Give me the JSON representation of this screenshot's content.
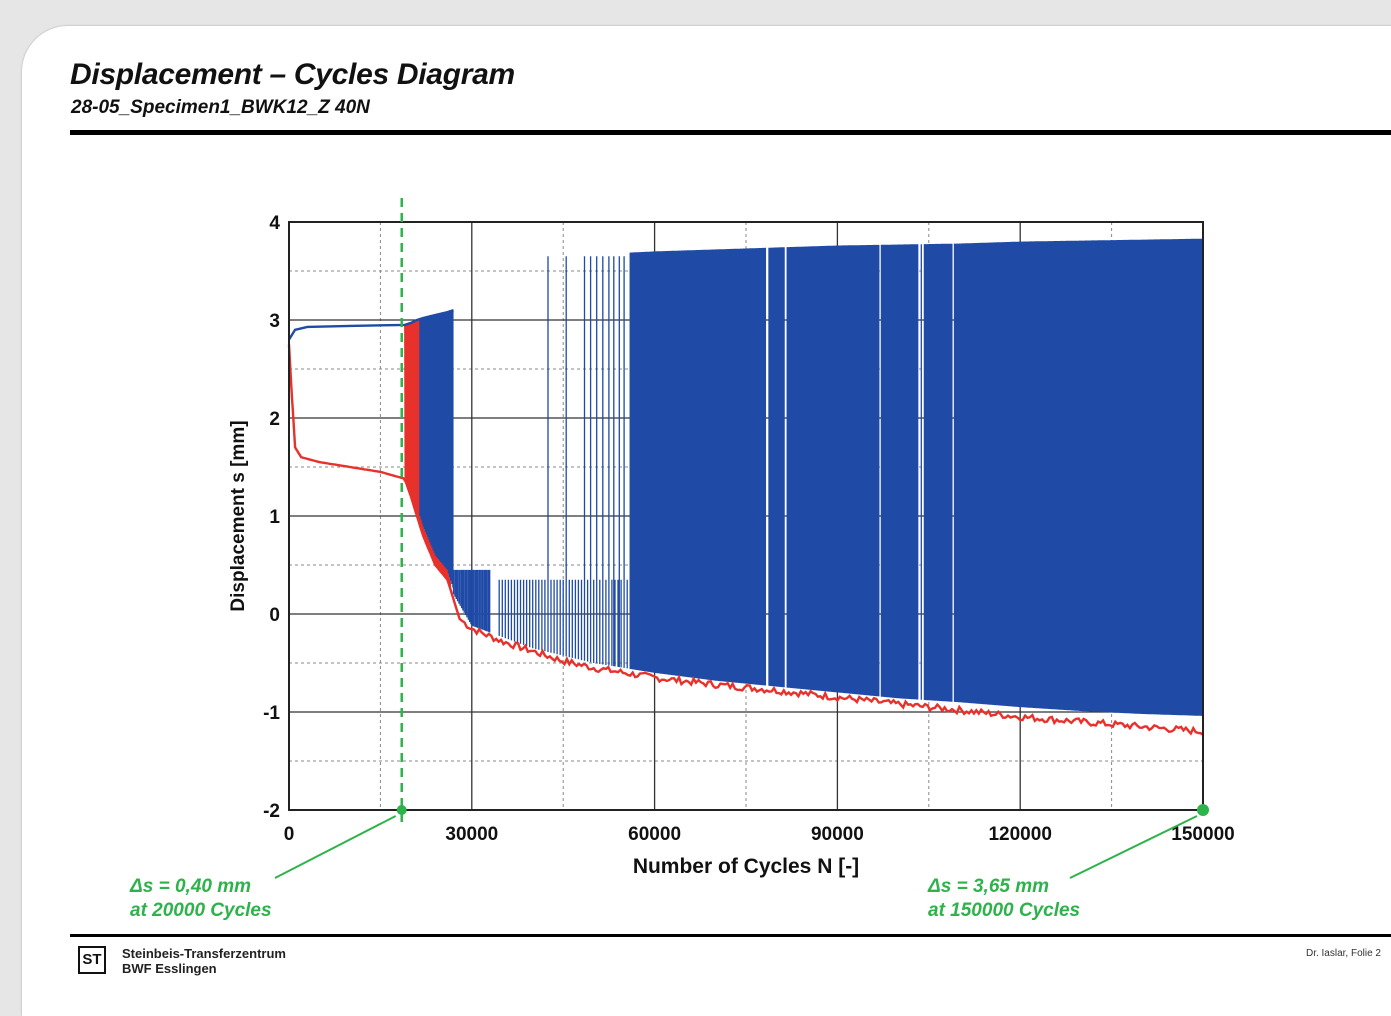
{
  "header": {
    "title": "Displacement – Cycles Diagram",
    "subtitle": "28-05_Specimen1_BWK12_Z 40N"
  },
  "footer": {
    "logo_text": "ST",
    "org_line1": "Steinbeis-Transferzentrum",
    "org_line2": "BWF Esslingen",
    "page": "Dr. Iaslar, Folie 2"
  },
  "chart_data": {
    "type": "line",
    "title": "",
    "xlabel": "Number of Cycles N [-]",
    "ylabel": "Displacement s [mm]",
    "xlim": [
      0,
      150000
    ],
    "ylim": [
      -2,
      4
    ],
    "x_ticks": [
      0,
      30000,
      60000,
      90000,
      120000,
      150000
    ],
    "x_tick_labels": [
      "0",
      "30000",
      "60000",
      "90000",
      "120000",
      "150000"
    ],
    "y_ticks": [
      -2,
      -1,
      0,
      1,
      2,
      3,
      4
    ],
    "y_tick_labels": [
      "-2",
      "-1",
      "0",
      "1",
      "2",
      "3",
      "4"
    ],
    "grid": true,
    "colors": {
      "upper": "#1f4aa6",
      "lower": "#e8312a",
      "marker": "#2db34a"
    },
    "series": [
      {
        "role": "upper",
        "x": [
          0,
          1000,
          3000,
          10000,
          19000,
          20000,
          21000,
          22000,
          24000,
          26000,
          27000,
          28000,
          30000,
          35000,
          40000,
          45000,
          50000,
          60000,
          70000,
          80000,
          90000,
          100000,
          110000,
          120000,
          130000,
          140000,
          150000
        ],
        "y": [
          2.8,
          2.9,
          2.93,
          2.94,
          2.95,
          2.97,
          3.0,
          3.02,
          3.05,
          3.08,
          3.1,
          3.3,
          3.5,
          3.6,
          3.62,
          3.65,
          3.67,
          3.7,
          3.72,
          3.74,
          3.76,
          3.77,
          3.78,
          3.8,
          3.81,
          3.82,
          3.83
        ]
      },
      {
        "role": "lower",
        "x": [
          0,
          500,
          1000,
          2000,
          5000,
          10000,
          15000,
          19000,
          20000,
          21000,
          22000,
          24000,
          26000,
          27000,
          28000,
          30000,
          35000,
          40000,
          45000,
          50000,
          60000,
          70000,
          80000,
          90000,
          100000,
          110000,
          120000,
          130000,
          140000,
          150000
        ],
        "y": [
          2.75,
          2.2,
          1.7,
          1.6,
          1.55,
          1.5,
          1.45,
          1.38,
          1.2,
          1.0,
          0.8,
          0.5,
          0.35,
          0.15,
          -0.05,
          -0.15,
          -0.28,
          -0.38,
          -0.48,
          -0.55,
          -0.65,
          -0.72,
          -0.78,
          -0.85,
          -0.92,
          -0.98,
          -1.05,
          -1.1,
          -1.15,
          -1.2
        ]
      },
      {
        "role": "envelope-min",
        "x": [
          27000,
          30000,
          40000,
          50000,
          60000,
          70000,
          80000,
          90000,
          100000,
          110000,
          120000,
          130000,
          140000,
          150000
        ],
        "y": [
          0.2,
          -0.12,
          -0.35,
          -0.5,
          -0.6,
          -0.68,
          -0.74,
          -0.8,
          -0.86,
          -0.9,
          -0.95,
          -0.99,
          -1.02,
          -1.04
        ]
      }
    ],
    "annotations": [
      {
        "text_line1": "Δs = 0,40 mm",
        "text_line2": "at 20000  Cycles",
        "x": 20000
      },
      {
        "text_line1": "Δs = 3,65 mm",
        "text_line2": "at 150000  Cycles",
        "x": 150000
      }
    ],
    "vertical_marker_x": 18500
  }
}
